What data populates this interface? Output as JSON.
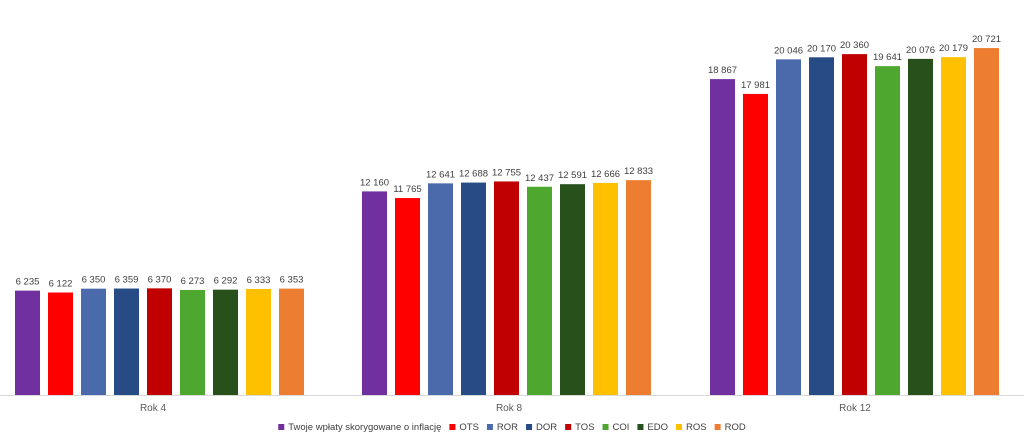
{
  "chart_data": {
    "type": "bar",
    "title": "",
    "xlabel": "",
    "ylabel": "",
    "categories": [
      "Rok 4",
      "Rok 8",
      "Rok 12"
    ],
    "ylim": [
      0,
      22000
    ],
    "grid": false,
    "legend_position": "bottom",
    "data_label_format": "thousands separated by space",
    "series": [
      {
        "name": "Twoje wpłaty skorygowane o inflację",
        "color": "#7030A0",
        "values": [
          6235,
          12160,
          18867
        ],
        "labels": [
          "6 235",
          "12 160",
          "18 867"
        ]
      },
      {
        "name": "OTS",
        "color": "#FF0000",
        "values": [
          6122,
          11765,
          17981
        ],
        "labels": [
          "6 122",
          "11 765",
          "17 981"
        ]
      },
      {
        "name": "ROR",
        "color": "#4A6AAB",
        "values": [
          6350,
          12641,
          20046
        ],
        "labels": [
          "6 350",
          "12 641",
          "20 046"
        ]
      },
      {
        "name": "DOR",
        "color": "#264B85",
        "values": [
          6359,
          12688,
          20170
        ],
        "labels": [
          "6 359",
          "12 688",
          "20 170"
        ]
      },
      {
        "name": "TOS",
        "color": "#C00000",
        "values": [
          6370,
          12755,
          20360
        ],
        "labels": [
          "6 370",
          "12 755",
          "20 360"
        ]
      },
      {
        "name": "COI",
        "color": "#4EA72E",
        "values": [
          6273,
          12437,
          19641
        ],
        "labels": [
          "6 273",
          "12 437",
          "19 641"
        ]
      },
      {
        "name": "EDO",
        "color": "#27501B",
        "values": [
          6292,
          12591,
          20076
        ],
        "labels": [
          "6 292",
          "12 591",
          "20 076"
        ]
      },
      {
        "name": "ROS",
        "color": "#FFC000",
        "values": [
          6333,
          12666,
          20179
        ],
        "labels": [
          "6 333",
          "12 666",
          "20 179"
        ]
      },
      {
        "name": "ROD",
        "color": "#ED7D31",
        "values": [
          6353,
          12833,
          20721
        ],
        "labels": [
          "6 353",
          "12 833",
          "20 721"
        ]
      }
    ]
  }
}
